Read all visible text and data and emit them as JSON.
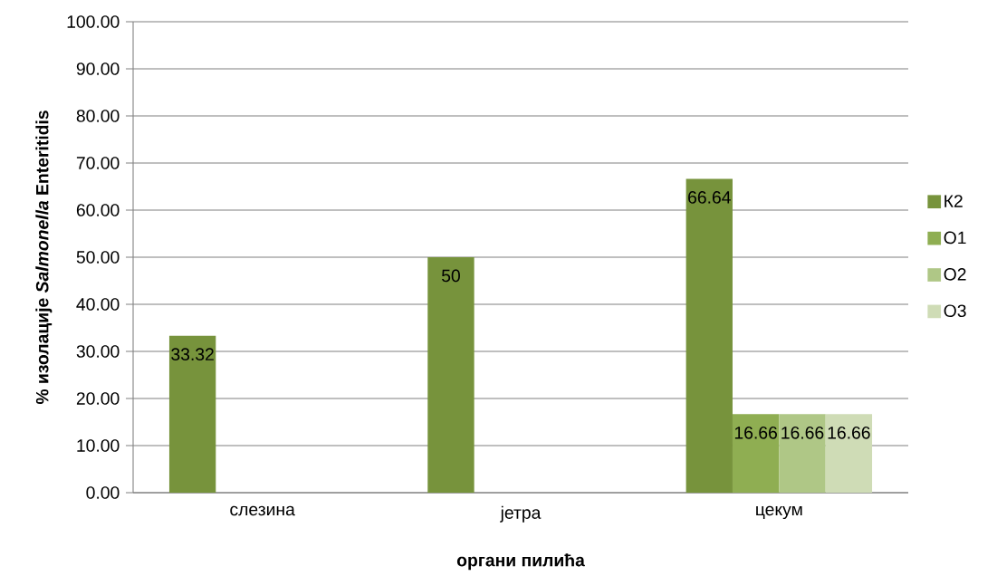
{
  "chart_data": {
    "type": "bar",
    "xlabel": "органи пилића",
    "ylabel": "% изолације *Salmonella* Enteritidis",
    "categories": [
      "слезина",
      "јетра",
      "цекум"
    ],
    "series": [
      {
        "name": "К2",
        "color": "#77933c",
        "values": [
          33.32,
          50,
          66.64
        ],
        "value_labels": [
          "33.32",
          "50",
          "66.64"
        ]
      },
      {
        "name": "О1",
        "color": "#8fae52",
        "values": [
          null,
          null,
          16.66
        ],
        "value_labels": [
          null,
          null,
          "16.66"
        ]
      },
      {
        "name": "О2",
        "color": "#afc786",
        "values": [
          null,
          null,
          16.66
        ],
        "value_labels": [
          null,
          null,
          "16.66"
        ]
      },
      {
        "name": "О3",
        "color": "#cfdcb6",
        "values": [
          null,
          null,
          16.66
        ],
        "value_labels": [
          null,
          null,
          "16.66"
        ]
      }
    ],
    "ylim": [
      0,
      100
    ],
    "yticks": [
      {
        "value": 0,
        "label": "0.00"
      },
      {
        "value": 10,
        "label": "10.00"
      },
      {
        "value": 20,
        "label": "20.00"
      },
      {
        "value": 30,
        "label": "30.00"
      },
      {
        "value": 40,
        "label": "40.00"
      },
      {
        "value": 50,
        "label": "50.00"
      },
      {
        "value": 60,
        "label": "60.00"
      },
      {
        "value": 70,
        "label": "70.00"
      },
      {
        "value": 80,
        "label": "80.00"
      },
      {
        "value": 90,
        "label": "90.00"
      },
      {
        "value": 100,
        "label": "100.00"
      }
    ],
    "grid": "y",
    "legend": "right"
  }
}
